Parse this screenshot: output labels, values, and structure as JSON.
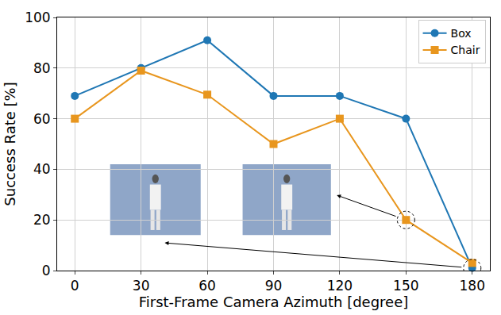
{
  "chart_data": {
    "type": "line",
    "x_label": "First-Frame Camera Azimuth [degree]",
    "y_label": "Success Rate [%]",
    "x": [
      0,
      30,
      60,
      90,
      120,
      150,
      180
    ],
    "series": [
      {
        "name": "Box",
        "color": "#1f77b4",
        "marker": "circle",
        "values": [
          69,
          80,
          91,
          69,
          69,
          60,
          1
        ]
      },
      {
        "name": "Chair",
        "color": "#e8961e",
        "marker": "square",
        "values": [
          60,
          79,
          69.5,
          50,
          60,
          20,
          3
        ]
      }
    ],
    "xlim": [
      -8,
      188
    ],
    "xticks": [
      0,
      30,
      60,
      90,
      120,
      150,
      180
    ],
    "ylim": [
      0,
      100
    ],
    "yticks": [
      0,
      20,
      40,
      60,
      80,
      100
    ],
    "grid": true,
    "legend": "upper right"
  }
}
